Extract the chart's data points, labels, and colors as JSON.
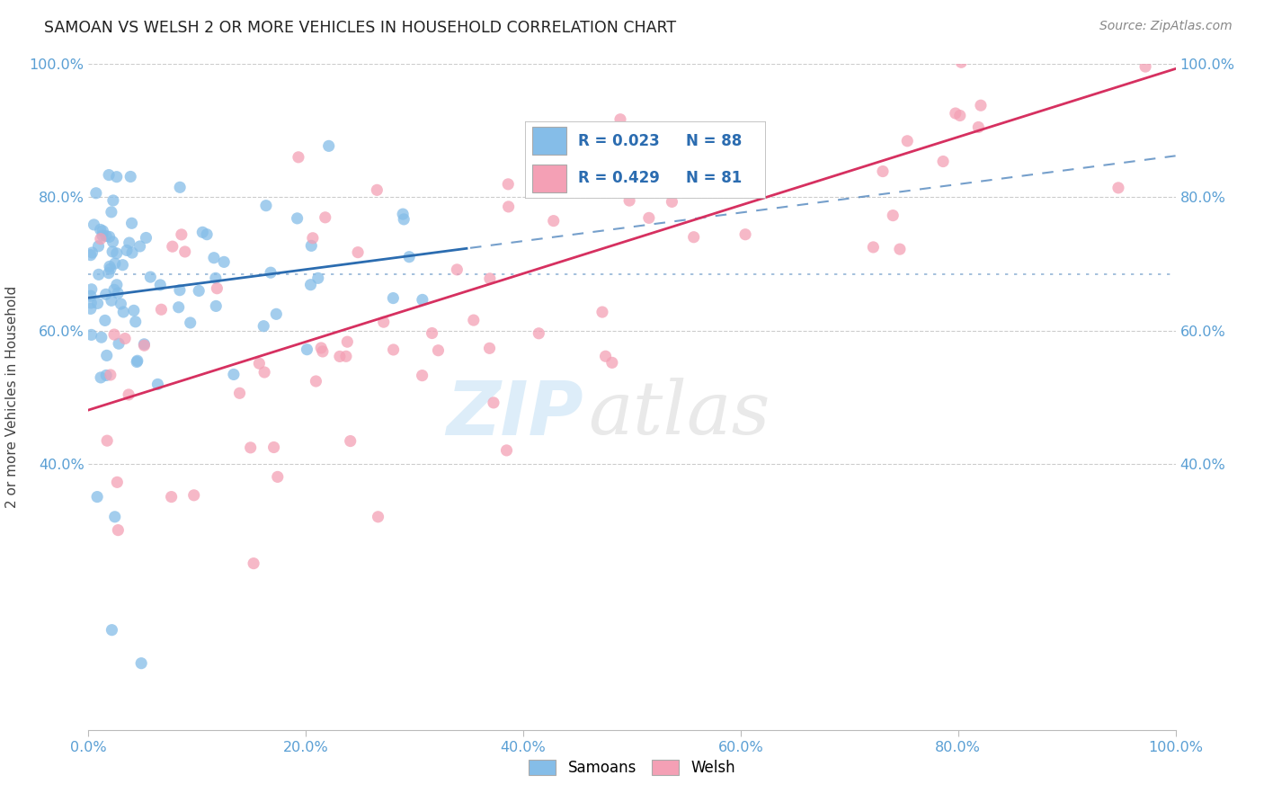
{
  "title": "SAMOAN VS WELSH 2 OR MORE VEHICLES IN HOUSEHOLD CORRELATION CHART",
  "source": "Source: ZipAtlas.com",
  "ylabel": "2 or more Vehicles in Household",
  "xlim": [
    0,
    1
  ],
  "ylim": [
    0,
    1
  ],
  "xticks": [
    0.0,
    0.2,
    0.4,
    0.6,
    0.8,
    1.0
  ],
  "yticks": [
    0.4,
    0.6,
    0.8,
    1.0
  ],
  "xticklabels": [
    "0.0%",
    "20.0%",
    "40.0%",
    "60.0%",
    "80.0%",
    "100.0%"
  ],
  "yticklabels": [
    "40.0%",
    "60.0%",
    "80.0%",
    "100.0%"
  ],
  "grid_color": "#cccccc",
  "background_color": "#ffffff",
  "watermark_zip": "ZIP",
  "watermark_atlas": "atlas",
  "legend_R_samoan": "R = 0.023",
  "legend_N_samoan": "N = 88",
  "legend_R_welsh": "R = 0.429",
  "legend_N_welsh": "N = 81",
  "samoan_color": "#85bde8",
  "welsh_color": "#f4a0b5",
  "samoan_line_color": "#2b6cb0",
  "welsh_line_color": "#d63060",
  "tick_color": "#5a9fd4",
  "title_color": "#222222",
  "source_color": "#888888",
  "ylabel_color": "#444444"
}
